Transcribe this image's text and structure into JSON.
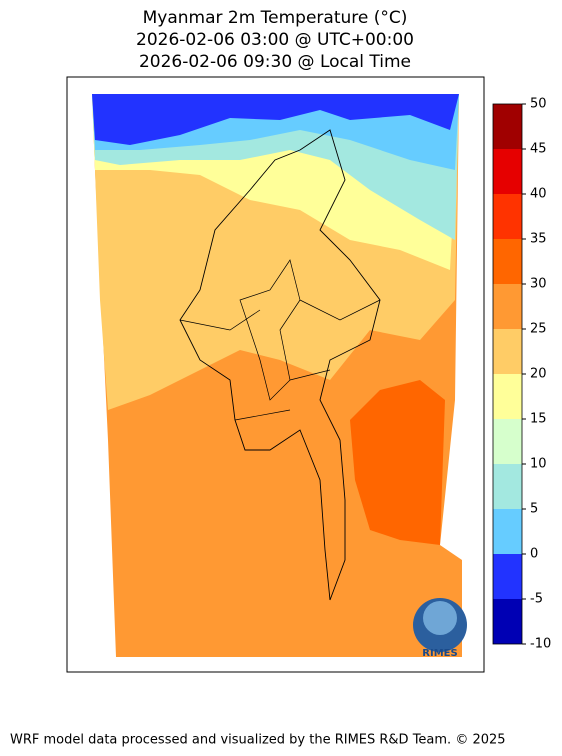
{
  "title": [
    "Myanmar 2m Temperature (°C)",
    "2026-02-06 03:00 @ UTC+00:00",
    "2026-02-06 09:30 @ Local Time"
  ],
  "colorbar": {
    "ticks": [
      -10,
      -5,
      0,
      5,
      10,
      15,
      20,
      25,
      30,
      35,
      40,
      45,
      50
    ],
    "colors": [
      "#0000b4",
      "#2233ff",
      "#66ccff",
      "#a3e8e0",
      "#d6ffcc",
      "#ffff99",
      "#ffcc66",
      "#ff9933",
      "#ff6600",
      "#ff3300",
      "#e60000",
      "#a00000"
    ]
  },
  "logo": "RIMES",
  "footer": "WRF model data processed and visualized by the RIMES R&D Team. © 2025"
}
